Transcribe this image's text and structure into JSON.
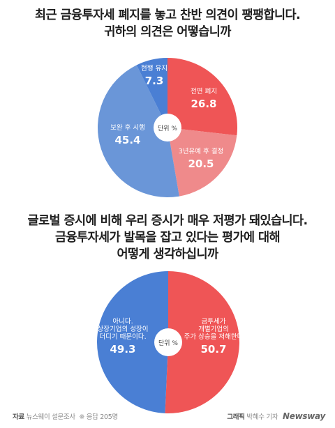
{
  "charts": [
    {
      "title_lines": [
        "최근 금융투자세 폐지를 놓고 찬반 의견이 팽팽합니다.",
        "귀하의 의견은 어떻습니까"
      ],
      "unit": "단위 %"
    },
    {
      "title_lines": [
        "글로벌 증시에 비해 우리 증시가 매우 저평가 돼있습니다.",
        "금융투자세가 발목을 잡고 있다는 평가에 대해",
        "어떻게 생각하십니까"
      ],
      "unit": "단위 %"
    }
  ],
  "chart_data": [
    {
      "type": "pie",
      "title": "최근 금융투자세 폐지를 놓고 찬반 의견이 팽팽합니다. 귀하의 의견은 어떻습니까",
      "unit": "%",
      "slices": [
        {
          "label": "전면 폐지",
          "value": 26.8,
          "color": "#ef5556"
        },
        {
          "label": "3년유예 후 결정",
          "value": 20.5,
          "color": "#ef8a8b"
        },
        {
          "label": "보완 후 시행",
          "value": 45.4,
          "color": "#6a96d8"
        },
        {
          "label": "현행 유지",
          "value": 7.3,
          "color": "#4a7fd4"
        }
      ]
    },
    {
      "type": "pie",
      "title": "글로벌 증시에 비해 우리 증시가 매우 저평가 돼있습니다. 금융투자세가 발목을 잡고 있다는 평가에 대해 어떻게 생각하십니까",
      "unit": "%",
      "slices": [
        {
          "label_lines": [
            "금투세가",
            "개별기업의",
            "주가 상승을 저해한다"
          ],
          "value": 50.7,
          "color": "#ef5556"
        },
        {
          "label_lines": [
            "아니다.",
            "상장기업의 성장이",
            "더디기 때문이다."
          ],
          "value": 49.3,
          "color": "#4a7fd4"
        }
      ]
    }
  ],
  "footer": {
    "source_label": "자료",
    "source": "뉴스웨이 설문조사",
    "note": "※ 응답 205명",
    "graphic_label": "그래픽",
    "graphic_author": "박혜수 기자",
    "brand": "Newsway"
  }
}
